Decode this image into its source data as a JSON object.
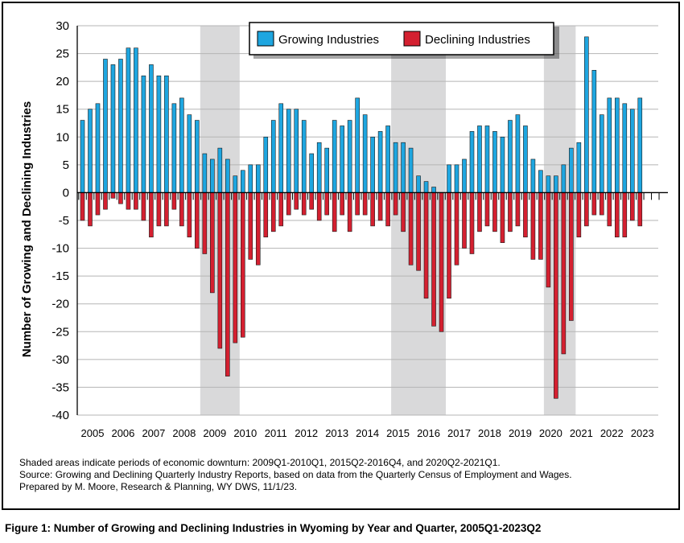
{
  "chart_data": {
    "type": "bar",
    "title": "",
    "xlabel": "",
    "ylabel": "Number of Growing and Declining Industries",
    "ylim": [
      -40,
      30
    ],
    "yticks": [
      30,
      25,
      20,
      15,
      10,
      5,
      0,
      -5,
      -10,
      -15,
      -20,
      -25,
      -30,
      -35,
      -40
    ],
    "years": [
      "2005",
      "2006",
      "2007",
      "2008",
      "2009",
      "2010",
      "2011",
      "2012",
      "2013",
      "2014",
      "2015",
      "2016",
      "2017",
      "2018",
      "2019",
      "2020",
      "2021",
      "2022",
      "2023"
    ],
    "quarters_per_year": 4,
    "legend": {
      "position": "top-center"
    },
    "grid": true,
    "shaded_periods": [
      {
        "start": "2009Q1",
        "end": "2010Q1"
      },
      {
        "start": "2015Q2",
        "end": "2016Q4"
      },
      {
        "start": "2020Q2",
        "end": "2021Q1"
      }
    ],
    "series": [
      {
        "name": "Growing Industries",
        "color": "#1ea6e0",
        "values": [
          13,
          15,
          16,
          24,
          23,
          24,
          26,
          26,
          21,
          23,
          21,
          21,
          16,
          17,
          14,
          13,
          7,
          6,
          8,
          6,
          3,
          4,
          5,
          5,
          10,
          13,
          16,
          15,
          15,
          13,
          7,
          9,
          8,
          13,
          12,
          13,
          17,
          14,
          10,
          11,
          12,
          9,
          9,
          8,
          3,
          2,
          1,
          0,
          5,
          5,
          6,
          11,
          12,
          12,
          11,
          10,
          13,
          14,
          12,
          6,
          4,
          3,
          3,
          5,
          8,
          9,
          28,
          22,
          14,
          17,
          17,
          16,
          15,
          17
        ]
      },
      {
        "name": "Declining Industries",
        "color": "#d42030",
        "values": [
          -5,
          -6,
          -4,
          -3,
          -1,
          -2,
          -3,
          -3,
          -5,
          -8,
          -6,
          -6,
          -3,
          -6,
          -8,
          -10,
          -11,
          -18,
          -28,
          -33,
          -27,
          -26,
          -12,
          -13,
          -8,
          -7,
          -6,
          -4,
          -3,
          -4,
          -3,
          -5,
          -4,
          -7,
          -4,
          -7,
          -4,
          -4,
          -6,
          -5,
          -6,
          -4,
          -7,
          -13,
          -14,
          -19,
          -24,
          -25,
          -19,
          -13,
          -10,
          -11,
          -7,
          -6,
          -7,
          -9,
          -7,
          -6,
          -8,
          -12,
          -12,
          -17,
          -37,
          -29,
          -23,
          -8,
          -6,
          -4,
          -4,
          -6,
          -8,
          -8,
          -5,
          -6
        ]
      }
    ]
  },
  "notes": {
    "line1": "Shaded areas indicate periods of economic downturn: 2009Q1-2010Q1, 2015Q2-2016Q4, and 2020Q2-2021Q1.",
    "line2": "Source: Growing and Declining Quarterly Industry Reports, based on data from the Quarterly Census of Employment and Wages.",
    "line3": "Prepared by M. Moore, Research & Planning, WY DWS, 11/1/23."
  },
  "caption": "Figure 1: Number of Growing and Declining Industries in Wyoming by Year and Quarter, 2005Q1-2023Q2"
}
